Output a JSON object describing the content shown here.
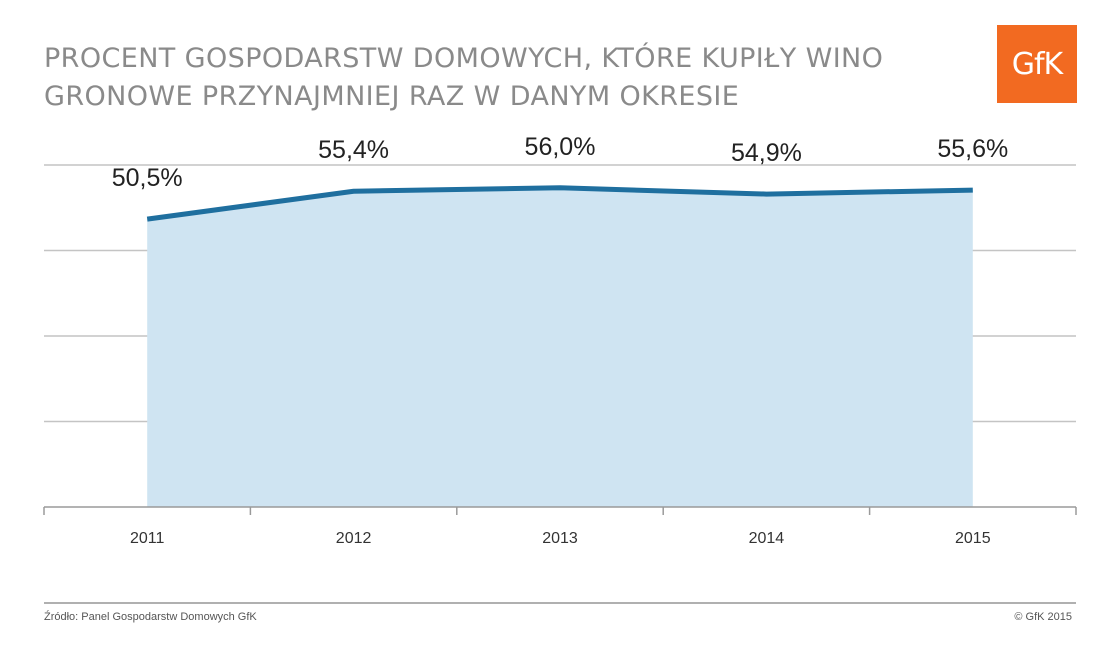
{
  "header": {
    "title_line1": "PROCENT GOSPODARSTW DOMOWYCH, KTÓRE KUPIŁY WINO",
    "title_line2": "GRONOWE PRZYNAJMNIEJ RAZ W DANYM OKRESIE",
    "logo_text": "GfK",
    "logo_color": "#f26a21"
  },
  "footer": {
    "source": "Źródło: Panel Gospodarstw Domowych GfK",
    "copyright": "© GfK 2015"
  },
  "chart_data": {
    "type": "area",
    "categories": [
      "2011",
      "2012",
      "2013",
      "2014",
      "2015"
    ],
    "values": [
      50.5,
      55.4,
      56.0,
      54.9,
      55.6
    ],
    "data_labels": [
      "50,5%",
      "55,4%",
      "56,0%",
      "54,9%",
      "55,6%"
    ],
    "title": "PROCENT GOSPODARSTW DOMOWYCH, KTÓRE KUPIŁY WINO GRONOWE PRZYNAJMNIEJ RAZ W DANYM OKRESIE",
    "xlabel": "",
    "ylabel": "",
    "ylim": [
      0,
      60
    ],
    "grid": true,
    "legend": "none",
    "line_color": "#1f6f9f",
    "fill_color": "#cfe4f2"
  }
}
